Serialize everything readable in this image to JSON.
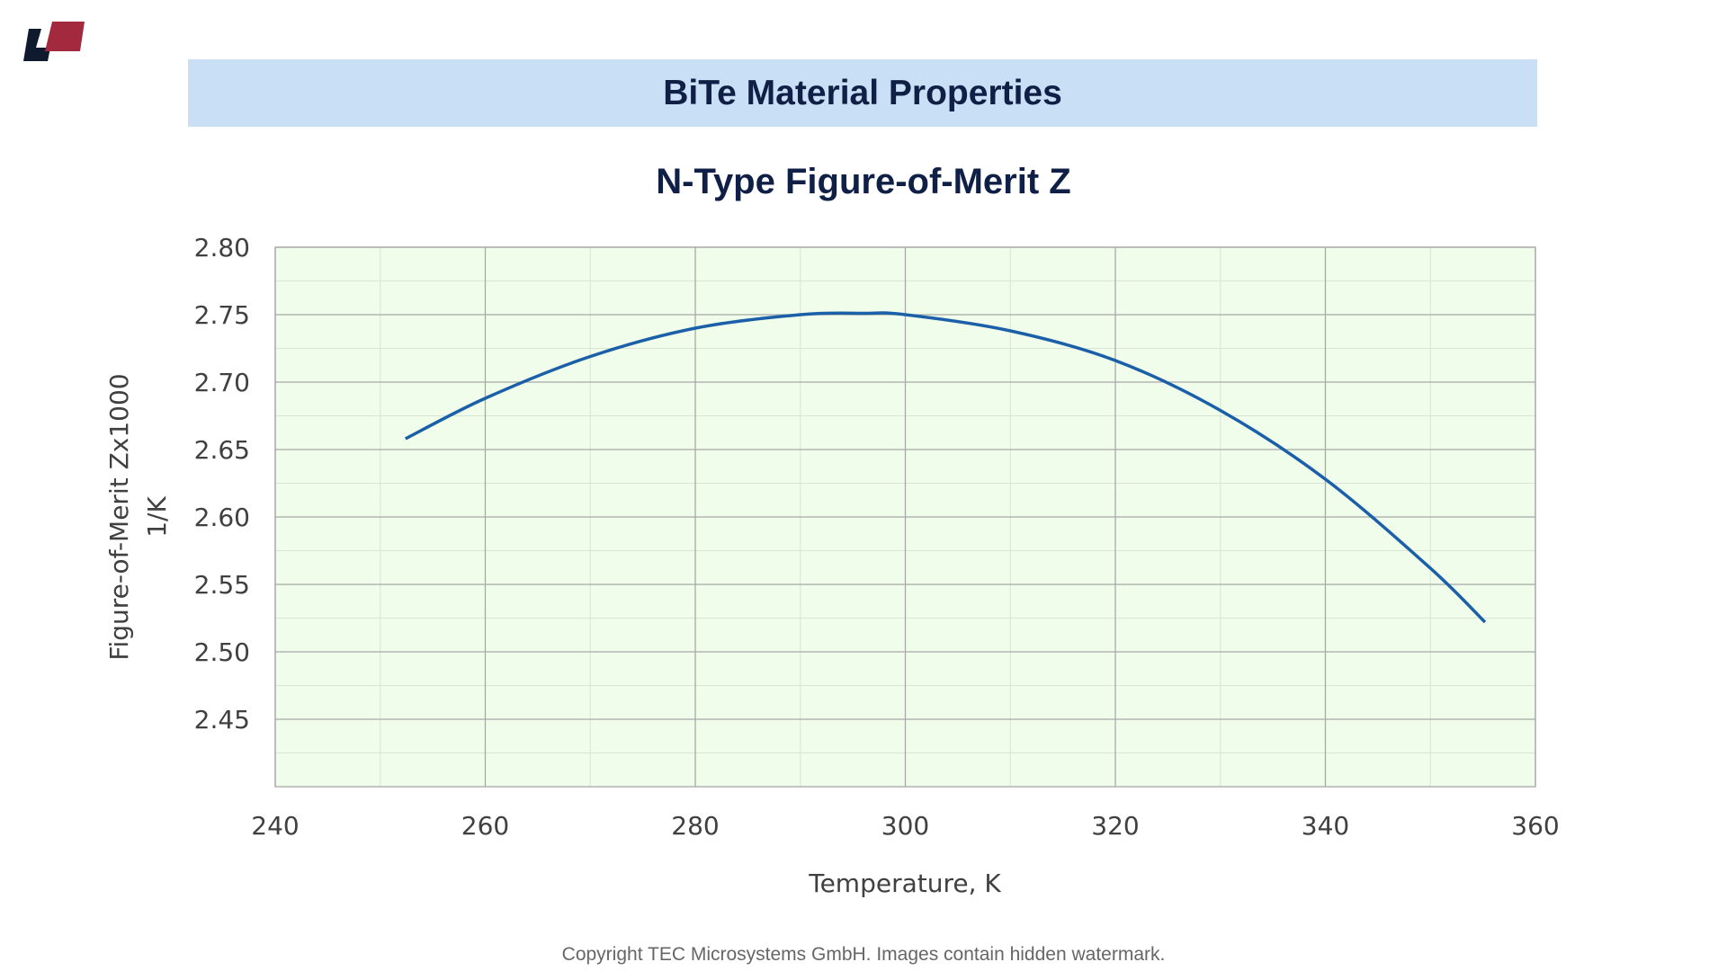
{
  "header": {
    "title": "BiTe Material Properties"
  },
  "logo": {
    "colors": [
      "#0f1a2e",
      "#a3293f"
    ]
  },
  "footer": {
    "copyright": "Copyright TEC Microsystems GmbH. Images contain hidden watermark."
  },
  "chart_data": {
    "type": "line",
    "title": "N-Type  Figure-of-Merit Z",
    "xlabel": "Temperature, K",
    "ylabel": [
      "Figure-of-Merit Zx1000",
      "1/K"
    ],
    "xlim": [
      240,
      360
    ],
    "ylim": [
      2.4,
      2.8
    ],
    "xticks": [
      240,
      260,
      280,
      300,
      320,
      340,
      360
    ],
    "yticks": [
      "2.45",
      "2.50",
      "2.55",
      "2.60",
      "2.65",
      "2.70",
      "2.75",
      "2.80"
    ],
    "grid": true,
    "plot_background": "#effdea",
    "series": [
      {
        "color": "#1a5fa8",
        "x": [
          252.4,
          260,
          270,
          280,
          290,
          296,
          300,
          310,
          320,
          330,
          340,
          350,
          355.2
        ],
        "y": [
          2.658,
          2.688,
          2.719,
          2.74,
          2.75,
          2.751,
          2.75,
          2.738,
          2.716,
          2.679,
          2.628,
          2.562,
          2.522
        ]
      }
    ]
  }
}
